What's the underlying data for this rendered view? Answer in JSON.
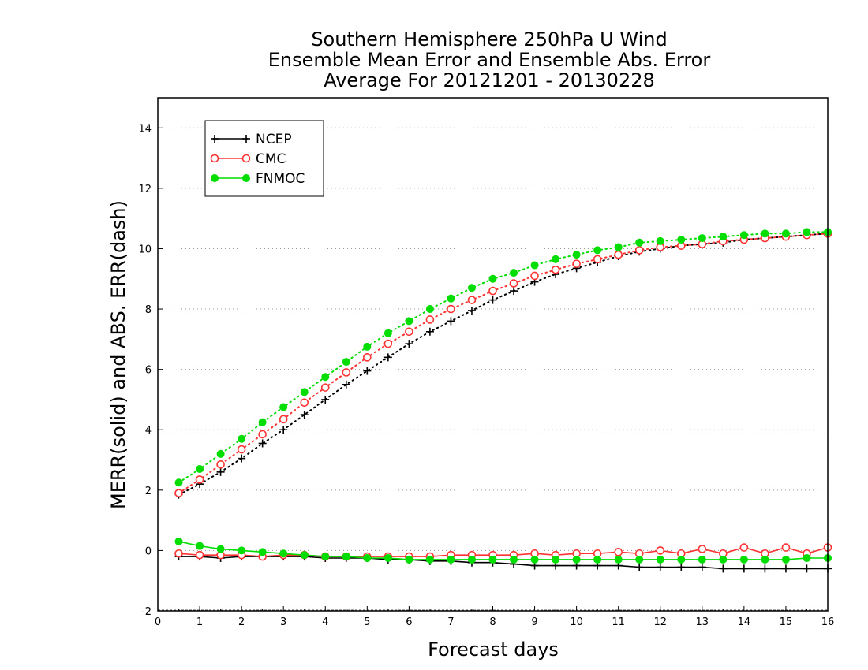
{
  "chart_data": {
    "type": "line",
    "title_lines": [
      "Southern Hemisphere 250hPa U Wind",
      "Ensemble Mean Error and Ensemble Abs. Error",
      "Average For 20121201 - 20130228"
    ],
    "xlabel": "Forecast days",
    "ylabel": "MERR(solid) and ABS. ERR(dash)",
    "xlim": [
      0,
      16
    ],
    "ylim": [
      -2,
      15
    ],
    "x_ticks": [
      "0",
      "1",
      "2",
      "3",
      "4",
      "5",
      "6",
      "7",
      "8",
      "9",
      "10",
      "11",
      "12",
      "13",
      "14",
      "15",
      "16"
    ],
    "y_ticks": [
      "-2",
      "0",
      "2",
      "4",
      "6",
      "8",
      "10",
      "12",
      "14"
    ],
    "grid": true,
    "legend_position": "top-left",
    "x": [
      0.5,
      1,
      1.5,
      2,
      2.5,
      3,
      3.5,
      4,
      4.5,
      5,
      5.5,
      6,
      6.5,
      7,
      7.5,
      8,
      8.5,
      9,
      9.5,
      10,
      10.5,
      11,
      11.5,
      12,
      12.5,
      13,
      13.5,
      14,
      14.5,
      15,
      15.5,
      16
    ],
    "series": [
      {
        "name": "NCEP",
        "color": "#000000",
        "marker": "plus",
        "abs_error": [
          1.85,
          2.2,
          2.6,
          3.05,
          3.55,
          4.0,
          4.5,
          5.0,
          5.5,
          5.95,
          6.4,
          6.85,
          7.25,
          7.6,
          7.95,
          8.3,
          8.6,
          8.9,
          9.15,
          9.35,
          9.55,
          9.75,
          9.9,
          10.0,
          10.1,
          10.15,
          10.2,
          10.3,
          10.35,
          10.4,
          10.45,
          10.5
        ],
        "mean_error": [
          -0.2,
          -0.2,
          -0.25,
          -0.2,
          -0.2,
          -0.2,
          -0.2,
          -0.25,
          -0.25,
          -0.25,
          -0.3,
          -0.3,
          -0.35,
          -0.35,
          -0.4,
          -0.4,
          -0.45,
          -0.5,
          -0.5,
          -0.5,
          -0.5,
          -0.5,
          -0.55,
          -0.55,
          -0.55,
          -0.55,
          -0.6,
          -0.6,
          -0.6,
          -0.6,
          -0.6,
          -0.6
        ]
      },
      {
        "name": "CMC",
        "color": "#ff3333",
        "marker": "open-circle",
        "abs_error": [
          1.9,
          2.35,
          2.85,
          3.35,
          3.85,
          4.35,
          4.9,
          5.4,
          5.9,
          6.4,
          6.85,
          7.25,
          7.65,
          8.0,
          8.3,
          8.6,
          8.85,
          9.1,
          9.3,
          9.5,
          9.65,
          9.8,
          9.95,
          10.05,
          10.1,
          10.15,
          10.25,
          10.3,
          10.35,
          10.4,
          10.45,
          10.5
        ],
        "mean_error": [
          -0.1,
          -0.15,
          -0.15,
          -0.15,
          -0.2,
          -0.15,
          -0.15,
          -0.2,
          -0.2,
          -0.2,
          -0.2,
          -0.2,
          -0.2,
          -0.15,
          -0.15,
          -0.15,
          -0.15,
          -0.1,
          -0.15,
          -0.1,
          -0.1,
          -0.05,
          -0.1,
          0.0,
          -0.1,
          0.05,
          -0.1,
          0.1,
          -0.1,
          0.1,
          -0.1,
          0.1
        ]
      },
      {
        "name": "FNMOC",
        "color": "#00dd00",
        "marker": "filled-circle",
        "abs_error": [
          2.25,
          2.7,
          3.2,
          3.7,
          4.25,
          4.75,
          5.25,
          5.75,
          6.25,
          6.75,
          7.2,
          7.6,
          8.0,
          8.35,
          8.7,
          9.0,
          9.2,
          9.45,
          9.65,
          9.8,
          9.95,
          10.05,
          10.2,
          10.25,
          10.3,
          10.35,
          10.4,
          10.45,
          10.5,
          10.5,
          10.55,
          10.55
        ],
        "mean_error": [
          0.3,
          0.15,
          0.05,
          0.0,
          -0.05,
          -0.1,
          -0.15,
          -0.2,
          -0.2,
          -0.25,
          -0.25,
          -0.3,
          -0.3,
          -0.3,
          -0.3,
          -0.3,
          -0.3,
          -0.3,
          -0.3,
          -0.3,
          -0.3,
          -0.3,
          -0.3,
          -0.3,
          -0.3,
          -0.3,
          -0.3,
          -0.3,
          -0.3,
          -0.3,
          -0.25,
          -0.25
        ]
      }
    ]
  }
}
